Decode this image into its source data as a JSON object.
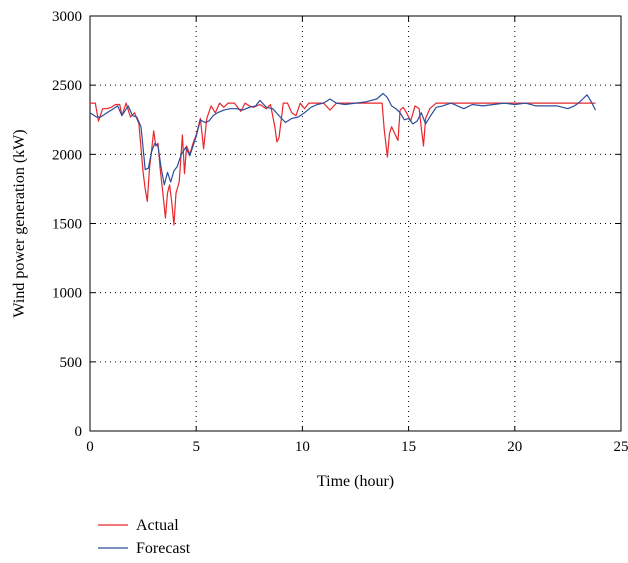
{
  "chart_data": {
    "type": "line",
    "title": "",
    "xlabel": "Time (hour)",
    "ylabel": "Wind power generation (kW)",
    "xlim": [
      0,
      25
    ],
    "ylim": [
      0,
      3000
    ],
    "xticks": [
      0,
      5,
      10,
      15,
      20,
      25
    ],
    "yticks": [
      0,
      500,
      1000,
      1500,
      2000,
      2500,
      3000
    ],
    "grid": true,
    "legend_position": "bottom-left, below plot",
    "series": [
      {
        "name": "Actual",
        "color": "#e8262b",
        "x": [
          0,
          0.25,
          0.4,
          0.6,
          0.8,
          1.0,
          1.2,
          1.4,
          1.5,
          1.7,
          1.9,
          2.1,
          2.3,
          2.5,
          2.6,
          2.7,
          2.8,
          2.9,
          3.0,
          3.1,
          3.2,
          3.3,
          3.45,
          3.55,
          3.65,
          3.75,
          3.85,
          3.95,
          4.05,
          4.2,
          4.35,
          4.45,
          4.55,
          4.7,
          4.85,
          5.0,
          5.2,
          5.35,
          5.5,
          5.7,
          5.9,
          6.1,
          6.3,
          6.5,
          6.8,
          7.1,
          7.3,
          7.5,
          7.7,
          8.0,
          8.3,
          8.5,
          8.7,
          8.8,
          8.9,
          9.1,
          9.3,
          9.5,
          9.7,
          9.9,
          10.1,
          10.3,
          10.6,
          11.0,
          11.3,
          11.6,
          12.0,
          12.5,
          13.0,
          13.4,
          13.6,
          13.75,
          13.85,
          14.0,
          14.1,
          14.2,
          14.35,
          14.5,
          14.6,
          14.75,
          14.9,
          15.1,
          15.3,
          15.5,
          15.6,
          15.7,
          15.8,
          16.0,
          16.3,
          16.6,
          17.0,
          17.3,
          17.6,
          18.0,
          19.0,
          20.0,
          21.0,
          22.0,
          23.0,
          23.8
        ],
        "y": [
          2370,
          2370,
          2240,
          2330,
          2330,
          2340,
          2360,
          2360,
          2280,
          2370,
          2270,
          2300,
          2220,
          1870,
          1750,
          1660,
          1900,
          2030,
          2170,
          2060,
          2080,
          1900,
          1690,
          1540,
          1720,
          1780,
          1650,
          1490,
          1720,
          1800,
          2140,
          1860,
          2060,
          2000,
          2080,
          2140,
          2260,
          2040,
          2260,
          2350,
          2300,
          2370,
          2340,
          2370,
          2370,
          2310,
          2370,
          2350,
          2340,
          2360,
          2330,
          2360,
          2200,
          2090,
          2120,
          2370,
          2370,
          2300,
          2280,
          2370,
          2330,
          2370,
          2370,
          2370,
          2320,
          2370,
          2370,
          2370,
          2370,
          2370,
          2370,
          2370,
          2180,
          1980,
          2150,
          2200,
          2150,
          2100,
          2320,
          2340,
          2300,
          2240,
          2350,
          2330,
          2190,
          2060,
          2260,
          2330,
          2370,
          2370,
          2370,
          2370,
          2370,
          2370,
          2370,
          2370,
          2370,
          2370,
          2370,
          2370
        ]
      },
      {
        "name": "Forecast",
        "color": "#2a4f9c",
        "x": [
          0,
          0.3,
          0.5,
          0.8,
          1.1,
          1.3,
          1.5,
          1.8,
          2.0,
          2.2,
          2.4,
          2.6,
          2.75,
          2.9,
          3.05,
          3.2,
          3.35,
          3.5,
          3.65,
          3.8,
          3.95,
          4.1,
          4.3,
          4.5,
          4.7,
          4.85,
          5.0,
          5.2,
          5.4,
          5.6,
          5.8,
          6.0,
          6.3,
          6.6,
          6.9,
          7.2,
          7.5,
          7.8,
          8.0,
          8.3,
          8.6,
          8.9,
          9.2,
          9.5,
          9.8,
          10.1,
          10.4,
          10.7,
          11.0,
          11.3,
          11.6,
          12.0,
          12.5,
          13.0,
          13.5,
          13.8,
          14.0,
          14.2,
          14.4,
          14.6,
          14.8,
          15.0,
          15.2,
          15.4,
          15.6,
          15.8,
          16.0,
          16.3,
          16.6,
          17.0,
          17.3,
          17.6,
          18.0,
          18.5,
          19.0,
          19.5,
          20.0,
          20.5,
          21.0,
          21.5,
          22.0,
          22.5,
          22.8,
          23.0,
          23.2,
          23.4,
          23.6,
          23.8
        ],
        "y": [
          2300,
          2270,
          2270,
          2300,
          2330,
          2350,
          2280,
          2350,
          2280,
          2270,
          2200,
          1890,
          1900,
          2020,
          2080,
          2060,
          1900,
          1780,
          1870,
          1800,
          1880,
          1910,
          2000,
          2050,
          1990,
          2060,
          2130,
          2250,
          2230,
          2240,
          2280,
          2300,
          2320,
          2330,
          2330,
          2320,
          2340,
          2350,
          2390,
          2340,
          2330,
          2280,
          2230,
          2260,
          2270,
          2300,
          2340,
          2360,
          2370,
          2400,
          2370,
          2360,
          2370,
          2380,
          2400,
          2440,
          2410,
          2350,
          2330,
          2300,
          2250,
          2260,
          2220,
          2240,
          2300,
          2220,
          2270,
          2340,
          2350,
          2370,
          2350,
          2330,
          2360,
          2350,
          2360,
          2370,
          2360,
          2370,
          2350,
          2350,
          2350,
          2330,
          2350,
          2370,
          2400,
          2430,
          2380,
          2320
        ]
      }
    ]
  }
}
